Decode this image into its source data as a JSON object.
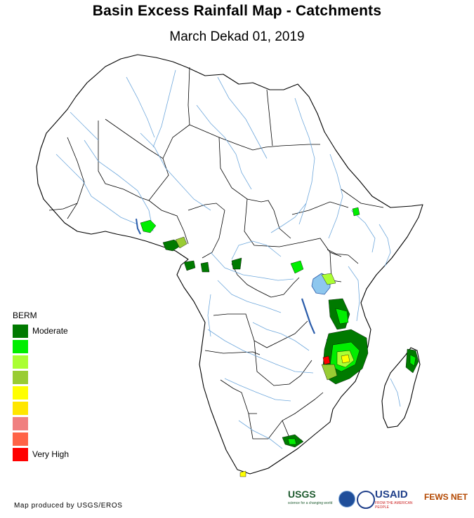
{
  "header": {
    "title": "Basin Excess Rainfall Map - Catchments",
    "subtitle": "March Dekad 01, 2019"
  },
  "legend": {
    "title": "BERM",
    "items": [
      {
        "label": "Moderate",
        "color": "#007a00"
      },
      {
        "label": "",
        "color": "#00ee00"
      },
      {
        "label": "",
        "color": "#aaff33"
      },
      {
        "label": "",
        "color": "#99cc33"
      },
      {
        "label": "",
        "color": "#ffff00"
      },
      {
        "label": "",
        "color": "#ffe600"
      },
      {
        "label": "",
        "color": "#f08080"
      },
      {
        "label": "",
        "color": "#ff6347"
      },
      {
        "label": "Very High",
        "color": "#ff0000"
      }
    ]
  },
  "footer": {
    "credit": "Map produced by USGS/EROS",
    "logos": {
      "usgs": "USGS",
      "usgs_tagline": "science for a changing world",
      "usaid": "USAID",
      "usaid_tagline": "FROM THE AMERICAN PEOPLE",
      "fewsnet": "FEWS NET"
    }
  },
  "colors": {
    "river": "#6fa8dc",
    "lake": "#8ec7ee",
    "border": "#000000"
  }
}
